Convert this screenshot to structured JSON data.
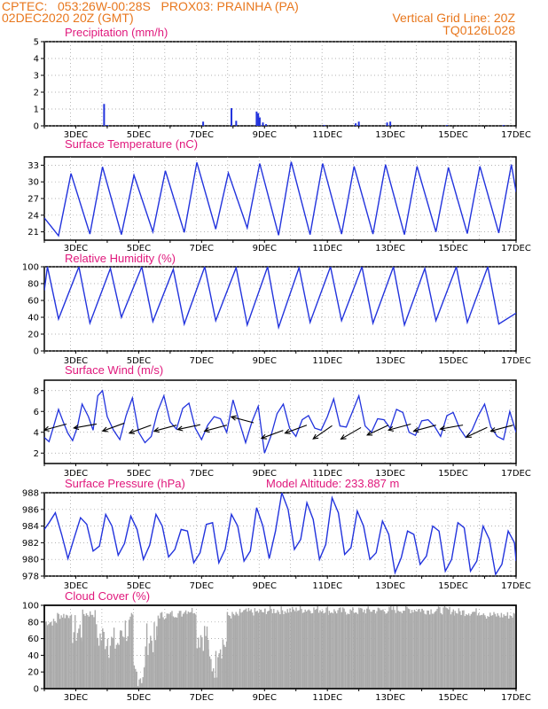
{
  "header": {
    "line1": "CPTEC:   053:26W-00:28S   PROX03: PRAINHA (PA)",
    "line2": "02DEC2020 20Z (GMT)",
    "grid_note": "Vertical Grid Line: 20Z",
    "code": "TQ0126L028"
  },
  "colors": {
    "header": "#e8771d",
    "title": "#e0187c",
    "line": "#2233dd",
    "cloud": "#aaaaaa",
    "wind_arrow": "#000000"
  },
  "x_labels": [
    "3DEC",
    "5DEC",
    "7DEC",
    "9DEC",
    "11DEC",
    "13DEC",
    "15DEC",
    "17DEC"
  ],
  "chart_data": [
    {
      "type": "bar",
      "title": "Precipitation (mm/h)",
      "ylim": [
        0,
        5
      ],
      "yticks": [
        "0",
        "1",
        "2",
        "3",
        "4",
        "5"
      ],
      "x_range_days": [
        2.0,
        17.0
      ],
      "bars": [
        {
          "x": 3.9,
          "y": 1.3
        },
        {
          "x": 7.05,
          "y": 0.25
        },
        {
          "x": 7.95,
          "y": 1.05
        },
        {
          "x": 8.1,
          "y": 0.3
        },
        {
          "x": 8.75,
          "y": 0.85
        },
        {
          "x": 8.8,
          "y": 0.75
        },
        {
          "x": 8.85,
          "y": 0.5
        },
        {
          "x": 8.95,
          "y": 0.2
        },
        {
          "x": 9.05,
          "y": 0.1
        },
        {
          "x": 11.9,
          "y": 0.15
        },
        {
          "x": 12.0,
          "y": 0.25
        },
        {
          "x": 12.9,
          "y": 0.2
        },
        {
          "x": 13.0,
          "y": 0.25
        },
        {
          "x": 4.0,
          "y": 0.05
        },
        {
          "x": 10.9,
          "y": 0.05
        },
        {
          "x": 14.8,
          "y": 0.05
        },
        {
          "x": 16.6,
          "y": 0.05
        }
      ]
    },
    {
      "type": "line",
      "title": "Surface Temperature (nC)",
      "ylim": [
        19.5,
        34.5
      ],
      "yticks": [
        "21",
        "24",
        "27",
        "30",
        "33"
      ],
      "x_range_days": [
        2.0,
        17.0
      ],
      "daily_min": [
        20.3,
        20.6,
        20.5,
        21.0,
        20.9,
        21.5,
        21.7,
        20.4,
        20.5,
        20.6,
        20.6,
        20.5,
        21.0,
        20.7,
        20.8
      ],
      "daily_max": [
        31.5,
        32.7,
        31.2,
        32.0,
        33.5,
        31.6,
        33.3,
        33.6,
        33.3,
        32.8,
        33.1,
        32.8,
        32.6,
        32.8,
        33.1
      ]
    },
    {
      "type": "line",
      "title": "Relative Humidity (%)",
      "ylim": [
        0,
        100
      ],
      "yticks": [
        "0",
        "20",
        "40",
        "60",
        "80",
        "100"
      ],
      "x_range_days": [
        2.0,
        17.0
      ],
      "daily_min": [
        38,
        33,
        40,
        35,
        32,
        36,
        31,
        28,
        34,
        36,
        33,
        31,
        36,
        34,
        32
      ],
      "daily_max": [
        100,
        100,
        98,
        100,
        97,
        100,
        99,
        100,
        99,
        100,
        100,
        100,
        98,
        100,
        100
      ]
    },
    {
      "type": "line",
      "title": "Surface Wind (m/s)",
      "ylim": [
        1,
        9
      ],
      "yticks": [
        "2",
        "4",
        "6",
        "8"
      ],
      "x_range_days": [
        2.0,
        17.0
      ],
      "series": [
        {
          "x": [
            2.0,
            2.15,
            2.3,
            2.45,
            2.6,
            2.75,
            2.9,
            3.05,
            3.2,
            3.4,
            3.55,
            3.7,
            3.85,
            4.0,
            4.2,
            4.4,
            4.6,
            4.8,
            5.0,
            5.2,
            5.4,
            5.6,
            5.8,
            6.0,
            6.2,
            6.4,
            6.6,
            6.8,
            7.0,
            7.2,
            7.4,
            7.6,
            7.8,
            8.0,
            8.2,
            8.4,
            8.6,
            8.8,
            9.0,
            9.2,
            9.4,
            9.6,
            9.8,
            10.0,
            10.2,
            10.4,
            10.6,
            10.8,
            11.0,
            11.2,
            11.4,
            11.6,
            11.8,
            12.0,
            12.2,
            12.4,
            12.6,
            12.8,
            13.0,
            13.2,
            13.4,
            13.6,
            13.8,
            14.0,
            14.2,
            14.4,
            14.6,
            14.8,
            15.0,
            15.2,
            15.4,
            15.6,
            15.8,
            16.0,
            16.2,
            16.4,
            16.6,
            16.8,
            17.0
          ],
          "y": [
            3.5,
            3.1,
            4.6,
            6.2,
            5.0,
            3.9,
            3.2,
            4.5,
            6.7,
            5.5,
            4.2,
            7.5,
            8.0,
            5.5,
            4.2,
            3.3,
            5.6,
            7.3,
            4.0,
            3.0,
            3.6,
            6.0,
            7.5,
            5.0,
            4.3,
            6.3,
            6.8,
            4.4,
            3.3,
            4.7,
            5.5,
            5.3,
            4.0,
            7.1,
            5.0,
            3.0,
            5.0,
            6.5,
            2.0,
            3.6,
            5.8,
            6.7,
            4.4,
            3.6,
            5.2,
            5.6,
            4.4,
            4.2,
            5.5,
            7.2,
            4.6,
            4.5,
            6.0,
            7.5,
            4.6,
            4.0,
            5.3,
            5.2,
            4.4,
            6.2,
            5.9,
            4.0,
            3.7,
            5.1,
            5.2,
            4.6,
            3.6,
            5.6,
            5.9,
            4.4,
            3.5,
            4.2,
            5.6,
            6.7,
            4.5,
            3.6,
            3.3,
            6.0,
            4.0
          ]
        }
      ],
      "arrows": [
        {
          "x": 2.35,
          "y": 4.5,
          "dir_deg": 195
        },
        {
          "x": 3.3,
          "y": 4.6,
          "dir_deg": 190
        },
        {
          "x": 4.2,
          "y": 4.5,
          "dir_deg": 200
        },
        {
          "x": 5.05,
          "y": 4.3,
          "dir_deg": 200
        },
        {
          "x": 5.85,
          "y": 4.4,
          "dir_deg": 195
        },
        {
          "x": 6.6,
          "y": 4.5,
          "dir_deg": 192
        },
        {
          "x": 7.45,
          "y": 4.4,
          "dir_deg": 195
        },
        {
          "x": 8.3,
          "y": 5.2,
          "dir_deg": 165
        },
        {
          "x": 9.25,
          "y": 3.8,
          "dir_deg": 200
        },
        {
          "x": 10.0,
          "y": 4.3,
          "dir_deg": 200
        },
        {
          "x": 10.85,
          "y": 4.0,
          "dir_deg": 215
        },
        {
          "x": 11.75,
          "y": 3.9,
          "dir_deg": 210
        },
        {
          "x": 12.6,
          "y": 4.2,
          "dir_deg": 205
        },
        {
          "x": 13.3,
          "y": 4.5,
          "dir_deg": 195
        },
        {
          "x": 14.1,
          "y": 4.4,
          "dir_deg": 195
        },
        {
          "x": 14.95,
          "y": 4.5,
          "dir_deg": 190
        },
        {
          "x": 15.75,
          "y": 4.0,
          "dir_deg": 205
        },
        {
          "x": 16.55,
          "y": 4.4,
          "dir_deg": 195
        }
      ]
    },
    {
      "type": "line",
      "title": "Surface Pressure (hPa)",
      "subtitle": "Model Altitude: 233.887 m",
      "ylim": [
        978,
        988
      ],
      "yticks": [
        "978",
        "980",
        "982",
        "984",
        "986",
        "988"
      ],
      "x_range_days": [
        2.0,
        17.0
      ],
      "series": [
        {
          "x": [
            2.0,
            2.15,
            2.35,
            2.55,
            2.75,
            2.95,
            3.15,
            3.35,
            3.55,
            3.75,
            3.95,
            4.15,
            4.35,
            4.55,
            4.75,
            4.95,
            5.15,
            5.35,
            5.55,
            5.75,
            5.95,
            6.15,
            6.35,
            6.55,
            6.75,
            6.95,
            7.15,
            7.35,
            7.55,
            7.75,
            7.95,
            8.15,
            8.35,
            8.55,
            8.75,
            8.95,
            9.15,
            9.35,
            9.55,
            9.75,
            9.95,
            10.15,
            10.35,
            10.55,
            10.75,
            10.95,
            11.15,
            11.35,
            11.55,
            11.75,
            11.95,
            12.15,
            12.35,
            12.55,
            12.75,
            12.95,
            13.15,
            13.35,
            13.55,
            13.75,
            13.95,
            14.15,
            14.35,
            14.55,
            14.75,
            14.95,
            15.15,
            15.35,
            15.55,
            15.75,
            15.95,
            16.15,
            16.35,
            16.55,
            16.75,
            16.95,
            17.0
          ],
          "y": [
            983.6,
            984.4,
            985.6,
            983.0,
            980.1,
            982.6,
            985.0,
            984.2,
            981.0,
            981.6,
            985.4,
            984.0,
            980.5,
            981.9,
            985.2,
            983.6,
            980.0,
            981.7,
            985.4,
            984.0,
            980.3,
            981.2,
            983.6,
            983.4,
            979.6,
            980.8,
            984.2,
            984.4,
            979.6,
            981.2,
            985.4,
            984.0,
            979.8,
            981.0,
            986.2,
            984.0,
            980.1,
            983.4,
            988.0,
            986.0,
            981.2,
            982.4,
            986.8,
            984.8,
            980.0,
            981.8,
            987.4,
            985.6,
            980.6,
            981.4,
            985.8,
            984.0,
            980.0,
            980.8,
            984.6,
            983.0,
            978.4,
            980.2,
            983.4,
            983.0,
            979.4,
            980.4,
            984.0,
            983.4,
            978.6,
            980.0,
            984.4,
            983.8,
            978.6,
            979.8,
            984.0,
            982.4,
            978.2,
            979.4,
            983.4,
            982.0,
            979.8
          ]
        }
      ]
    },
    {
      "type": "bar",
      "title": "Cloud Cover (%)",
      "ylim": [
        0,
        100
      ],
      "yticks": [
        "0",
        "20",
        "40",
        "60",
        "80",
        "100"
      ],
      "x_range_days": [
        2.0,
        17.0
      ],
      "segments": [
        {
          "x0": 2.0,
          "x1": 2.4,
          "y": 80
        },
        {
          "x0": 2.4,
          "x1": 2.8,
          "y": 88
        },
        {
          "x0": 2.8,
          "x1": 3.2,
          "y": 70
        },
        {
          "x0": 3.2,
          "x1": 3.6,
          "y": 90
        },
        {
          "x0": 3.6,
          "x1": 4.0,
          "y": 62
        },
        {
          "x0": 4.0,
          "x1": 4.4,
          "y": 55
        },
        {
          "x0": 4.4,
          "x1": 4.8,
          "y": 72
        },
        {
          "x0": 4.8,
          "x1": 5.2,
          "y": 18
        },
        {
          "x0": 5.2,
          "x1": 5.6,
          "y": 60
        },
        {
          "x0": 5.6,
          "x1": 6.0,
          "y": 88
        },
        {
          "x0": 6.0,
          "x1": 6.4,
          "y": 90
        },
        {
          "x0": 6.4,
          "x1": 6.8,
          "y": 94
        },
        {
          "x0": 6.8,
          "x1": 7.2,
          "y": 65
        },
        {
          "x0": 7.2,
          "x1": 7.5,
          "y": 30
        },
        {
          "x0": 7.5,
          "x1": 7.8,
          "y": 55
        },
        {
          "x0": 7.8,
          "x1": 8.2,
          "y": 88
        },
        {
          "x0": 8.2,
          "x1": 9.0,
          "y": 92
        },
        {
          "x0": 9.0,
          "x1": 10.0,
          "y": 94
        },
        {
          "x0": 10.0,
          "x1": 11.0,
          "y": 95
        },
        {
          "x0": 11.0,
          "x1": 12.0,
          "y": 93
        },
        {
          "x0": 12.0,
          "x1": 13.0,
          "y": 94
        },
        {
          "x0": 13.0,
          "x1": 14.0,
          "y": 95
        },
        {
          "x0": 14.0,
          "x1": 15.0,
          "y": 94
        },
        {
          "x0": 15.0,
          "x1": 16.0,
          "y": 92
        },
        {
          "x0": 16.0,
          "x1": 17.0,
          "y": 88
        }
      ]
    }
  ]
}
